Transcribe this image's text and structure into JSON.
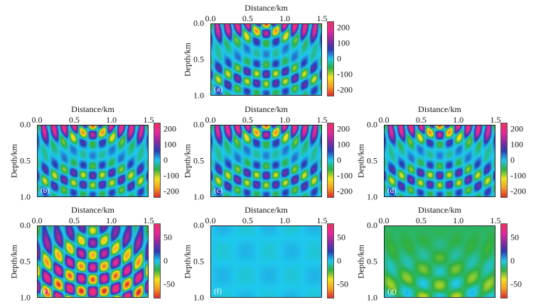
{
  "chart_data": {
    "type": "heatmap",
    "xlabel": "Distance/km",
    "ylabel": "Depth/km",
    "x_ticks": [
      "0.0",
      "0.5",
      "1.0",
      "1.5"
    ],
    "y_ticks": [
      "0.0",
      "0.5",
      "1.0"
    ],
    "xlim": [
      0,
      1.5
    ],
    "ylim": [
      0,
      1.0
    ],
    "colormap": [
      "#e02a2a",
      "#f5a020",
      "#f0e41e",
      "#2fb040",
      "#1ec8ee",
      "#2a3cb4",
      "#8a2aa0",
      "#e8289a",
      "#e83262"
    ],
    "panels": [
      {
        "label": "(a)",
        "clim": [
          -240,
          240
        ],
        "cbar_ticks": [
          "200",
          "100",
          "0",
          "-100",
          "-200"
        ],
        "cbar_values": [
          200,
          100,
          0,
          -100,
          -200
        ],
        "pattern": "full"
      },
      {
        "label": "(b)",
        "clim": [
          -240,
          240
        ],
        "cbar_ticks": [
          "200",
          "100",
          "0",
          "-100",
          "-200"
        ],
        "cbar_values": [
          200,
          100,
          0,
          -100,
          -200
        ],
        "pattern": "full"
      },
      {
        "label": "(c)",
        "clim": [
          -240,
          240
        ],
        "cbar_ticks": [
          "200",
          "100",
          "0",
          "-100",
          "-200"
        ],
        "cbar_values": [
          200,
          100,
          0,
          -100,
          -200
        ],
        "pattern": "full"
      },
      {
        "label": "(d)",
        "clim": [
          -240,
          240
        ],
        "cbar_ticks": [
          "200",
          "100",
          "0",
          "-100",
          "-200"
        ],
        "cbar_values": [
          200,
          100,
          0,
          -100,
          -200
        ],
        "pattern": "full"
      },
      {
        "label": "(e)",
        "clim": [
          -80,
          80
        ],
        "cbar_ticks": [
          "50",
          "0",
          "-50"
        ],
        "cbar_values": [
          50,
          0,
          -50
        ],
        "pattern": "residual"
      },
      {
        "label": "(f)",
        "clim": [
          -80,
          80
        ],
        "cbar_ticks": [
          "50",
          "0",
          "-50"
        ],
        "cbar_values": [
          50,
          0,
          -50
        ],
        "pattern": "flat"
      },
      {
        "label": "(g)",
        "clim": [
          -80,
          80
        ],
        "cbar_ticks": [
          "50",
          "0",
          "-50"
        ],
        "cbar_values": [
          50,
          0,
          -50
        ],
        "pattern": "weak"
      }
    ]
  }
}
